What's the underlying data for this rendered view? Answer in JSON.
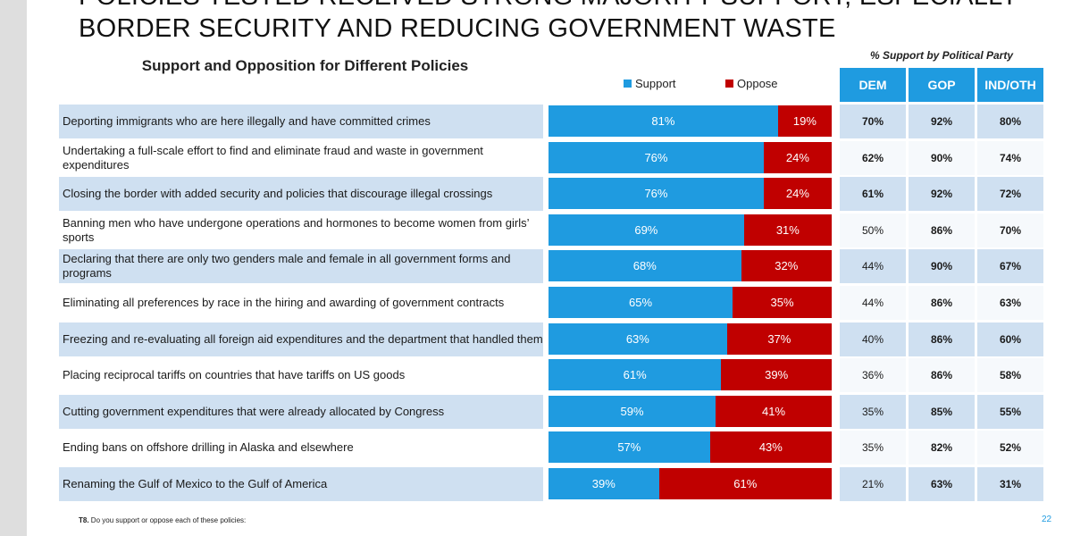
{
  "title_lines": [
    "POLICIES TESTED RECEIVED STRONG MAJORITY SUPPORT, ESPECIALLY",
    "BORDER SECURITY AND REDUCING GOVERNMENT WASTE"
  ],
  "colors": {
    "support": "#1f9be0",
    "oppose": "#c00000",
    "header": "#1f9be0",
    "row_shade": "#cfe0f1"
  },
  "chart_data": {
    "type": "bar",
    "orientation": "horizontal-stacked-100",
    "title": "Support and Opposition for Different Policies",
    "legend": [
      "Support",
      "Oppose"
    ],
    "legend_position": "top",
    "categories": [
      "Deporting immigrants who are here illegally and have committed crimes",
      "Undertaking a full-scale effort to find and eliminate fraud and waste in government expenditures",
      "Closing the border with added security and policies that discourage illegal crossings",
      "Banning men who have undergone operations and hormones to become women from girls’ sports",
      "Declaring that there are only two genders male and female in all government forms and programs",
      "Eliminating all preferences by race in the hiring and awarding of government contracts",
      "Freezing and re-evaluating all foreign aid expenditures and the department that handled them",
      "Placing reciprocal tariffs on countries that have tariffs on US goods",
      "Cutting government expenditures that were already allocated by Congress",
      "Ending bans on offshore drilling in Alaska and elsewhere",
      "Renaming the Gulf of Mexico to the Gulf of America"
    ],
    "series": [
      {
        "name": "Support",
        "values": [
          81,
          76,
          76,
          69,
          68,
          65,
          63,
          61,
          59,
          57,
          39
        ]
      },
      {
        "name": "Oppose",
        "values": [
          19,
          24,
          24,
          31,
          32,
          35,
          37,
          39,
          41,
          43,
          61
        ]
      }
    ],
    "xlim": [
      0,
      100
    ]
  },
  "party_table": {
    "title": "% Support by Political Party",
    "columns": [
      "DEM",
      "GOP",
      "IND/OTH"
    ],
    "rows": [
      [
        "70%",
        "92%",
        "80%"
      ],
      [
        "62%",
        "90%",
        "74%"
      ],
      [
        "61%",
        "92%",
        "72%"
      ],
      [
        "50%",
        "86%",
        "70%"
      ],
      [
        "44%",
        "90%",
        "67%"
      ],
      [
        "44%",
        "86%",
        "63%"
      ],
      [
        "40%",
        "86%",
        "60%"
      ],
      [
        "36%",
        "86%",
        "58%"
      ],
      [
        "35%",
        "85%",
        "55%"
      ],
      [
        "35%",
        "82%",
        "52%"
      ],
      [
        "21%",
        "63%",
        "31%"
      ]
    ]
  },
  "footnote": {
    "code": "T8.",
    "text": "Do you support or oppose each of these policies:"
  },
  "page_number": "22"
}
